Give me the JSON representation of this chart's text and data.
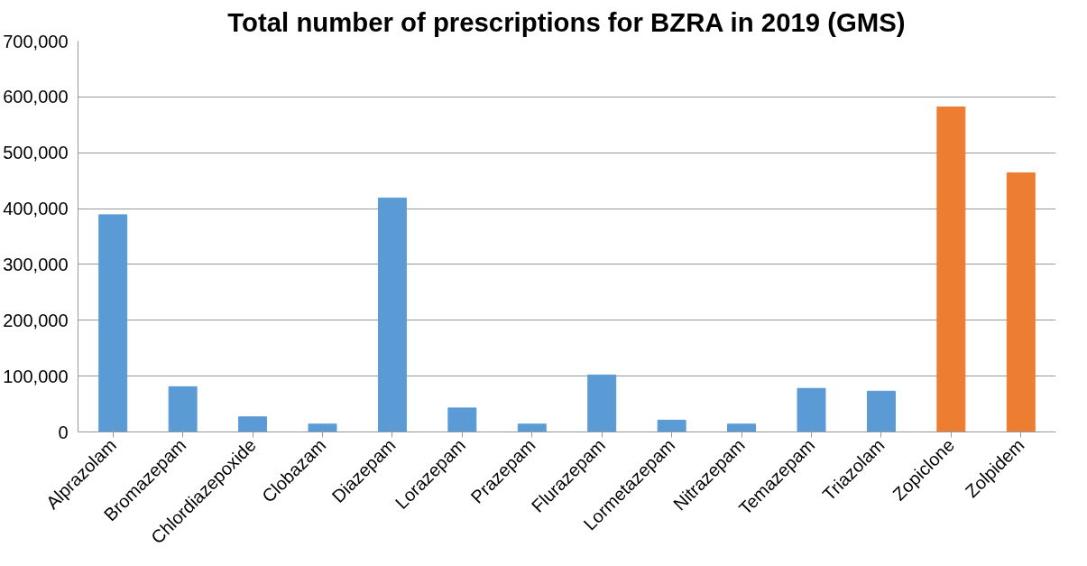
{
  "chart_data": {
    "type": "bar",
    "title": "Total number of prescriptions for BZRA in 2019 (GMS)",
    "categories": [
      "Alprazolam",
      "Bromazepam",
      "Chlordiazepoxide",
      "Clobazam",
      "Diazepam",
      "Lorazepam",
      "Prazepam",
      "Flurazepam",
      "Lormetazepam",
      "Nitrazepam",
      "Temazepam",
      "Triazolam",
      "Zopiclone",
      "Zolpidem"
    ],
    "values": [
      389000,
      81000,
      27000,
      14000,
      419000,
      43000,
      14000,
      102000,
      21000,
      14000,
      78000,
      73000,
      582000,
      464000
    ],
    "colors": [
      "#5b9bd5",
      "#5b9bd5",
      "#5b9bd5",
      "#5b9bd5",
      "#5b9bd5",
      "#5b9bd5",
      "#5b9bd5",
      "#5b9bd5",
      "#5b9bd5",
      "#5b9bd5",
      "#5b9bd5",
      "#5b9bd5",
      "#ed7d31",
      "#ed7d31"
    ],
    "ylim": [
      0,
      700000
    ],
    "yticks": [
      {
        "value": 0,
        "label": "0"
      },
      {
        "value": 100000,
        "label": "100,000"
      },
      {
        "value": 200000,
        "label": "200,000"
      },
      {
        "value": 300000,
        "label": "300,000"
      },
      {
        "value": 400000,
        "label": "400,000"
      },
      {
        "value": 500000,
        "label": "500,000"
      },
      {
        "value": 600000,
        "label": "600,000"
      },
      {
        "value": 700000,
        "label": "700,000"
      }
    ],
    "grid": "y"
  }
}
